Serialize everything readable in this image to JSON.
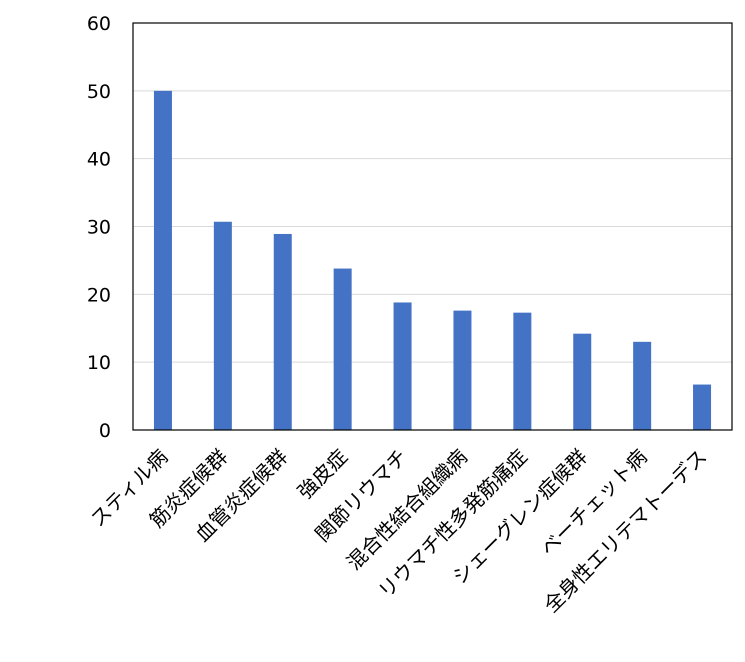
{
  "chart_data": {
    "type": "bar",
    "title": "",
    "xlabel": "",
    "ylabel": "",
    "categories": [
      "スティル病",
      "筋炎症候群",
      "血管炎症候群",
      "強皮症",
      "関節リウマチ",
      "混合性結合組織病",
      "リウマチ性多発筋痛症",
      "シェーグレン症候群",
      "ベーチェット病",
      "全身性エリテマトーデス"
    ],
    "values": [
      50,
      30.7,
      28.9,
      23.8,
      18.8,
      17.6,
      17.3,
      14.2,
      13.0,
      6.7
    ],
    "ylim": [
      0,
      60
    ],
    "yticks": [
      0,
      10,
      20,
      30,
      40,
      50,
      60
    ],
    "grid": true,
    "legend": "none",
    "colors": {
      "bar": "#4472C4",
      "grid": "#D9D9D9",
      "axis": "#000000"
    }
  }
}
